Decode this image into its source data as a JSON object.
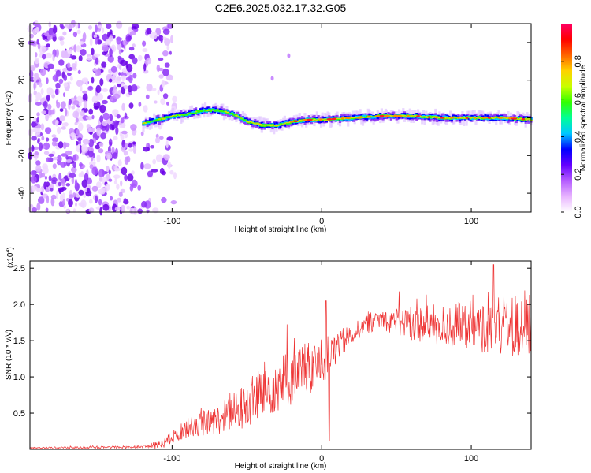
{
  "title": "C2E6.2025.032.17.32.G05",
  "chart_data": [
    {
      "type": "heatmap",
      "title": "C2E6.2025.032.17.32.G05",
      "xlabel": "Height of straight line (km)",
      "ylabel": "Frequency (Hz)",
      "xlim": [
        -195,
        140
      ],
      "ylim": [
        -50,
        50
      ],
      "x_ticks": [
        -100,
        0,
        100
      ],
      "y_ticks": [
        -40,
        -20,
        0,
        20,
        40
      ],
      "noise_region_x": [
        -195,
        -110
      ],
      "ridge_center_points": [
        {
          "x": -120,
          "y": -3
        },
        {
          "x": -110,
          "y": -1
        },
        {
          "x": -100,
          "y": 1
        },
        {
          "x": -90,
          "y": 2
        },
        {
          "x": -80,
          "y": 4
        },
        {
          "x": -70,
          "y": 4
        },
        {
          "x": -60,
          "y": 2
        },
        {
          "x": -50,
          "y": -2
        },
        {
          "x": -40,
          "y": -4
        },
        {
          "x": -30,
          "y": -4
        },
        {
          "x": -20,
          "y": -2
        },
        {
          "x": -10,
          "y": -1
        },
        {
          "x": 0,
          "y": -1
        },
        {
          "x": 20,
          "y": 0
        },
        {
          "x": 40,
          "y": 1
        },
        {
          "x": 60,
          "y": 1
        },
        {
          "x": 80,
          "y": 0
        },
        {
          "x": 100,
          "y": 0
        },
        {
          "x": 120,
          "y": 0
        },
        {
          "x": 140,
          "y": -1
        }
      ],
      "isolated_blips": [
        {
          "x": -33,
          "y": 21
        },
        {
          "x": -22,
          "y": 33
        }
      ],
      "colorbar": {
        "label": "Normalized spectral amplitude",
        "range": [
          0.0,
          1.0
        ],
        "ticks": [
          "0.0",
          "0.2",
          "0.4",
          "0.6",
          "0.8"
        ],
        "tick_values": [
          0.0,
          0.2,
          0.4,
          0.6,
          0.8
        ],
        "colors": [
          "#ffffff",
          "#e8b4ff",
          "#b45cff",
          "#6400ff",
          "#0000ff",
          "#00c8ff",
          "#00ff96",
          "#32ff00",
          "#c8ff00",
          "#ffd200",
          "#ff6400",
          "#ff0000",
          "#ff0064"
        ]
      }
    },
    {
      "type": "line",
      "xlabel": "Height of straight line (km)",
      "ylabel": "SNR (10 * v/v)",
      "y_multiplier": "(x10",
      "y_multiplier_exp": "4",
      "y_multiplier_close": ")",
      "xlim": [
        -195,
        140
      ],
      "ylim": [
        0,
        2.6
      ],
      "x_ticks": [
        -100,
        0,
        100
      ],
      "y_ticks": [
        0.5,
        1.0,
        1.5,
        2.0,
        2.5
      ],
      "y_tick_labels": [
        "0.5",
        "1.0",
        "1.5",
        "2.0",
        "2.5"
      ],
      "color": "#ee3333",
      "series_envelope": [
        {
          "x": -195,
          "y": 0.02
        },
        {
          "x": -130,
          "y": 0.03
        },
        {
          "x": -110,
          "y": 0.05
        },
        {
          "x": -100,
          "y": 0.15
        },
        {
          "x": -90,
          "y": 0.3
        },
        {
          "x": -80,
          "y": 0.35
        },
        {
          "x": -70,
          "y": 0.4
        },
        {
          "x": -60,
          "y": 0.5
        },
        {
          "x": -50,
          "y": 0.6
        },
        {
          "x": -40,
          "y": 0.8
        },
        {
          "x": -30,
          "y": 0.9
        },
        {
          "x": -20,
          "y": 1.0
        },
        {
          "x": -10,
          "y": 1.1
        },
        {
          "x": 0,
          "y": 1.2
        },
        {
          "x": 10,
          "y": 1.4
        },
        {
          "x": 20,
          "y": 1.6
        },
        {
          "x": 30,
          "y": 1.75
        },
        {
          "x": 40,
          "y": 1.8
        },
        {
          "x": 60,
          "y": 1.75
        },
        {
          "x": 80,
          "y": 1.7
        },
        {
          "x": 100,
          "y": 1.7
        },
        {
          "x": 120,
          "y": 1.7
        },
        {
          "x": 140,
          "y": 1.7
        }
      ],
      "noise_amplitude": [
        {
          "x": -195,
          "y": 0.01
        },
        {
          "x": -120,
          "y": 0.02
        },
        {
          "x": -100,
          "y": 0.1
        },
        {
          "x": -70,
          "y": 0.2
        },
        {
          "x": -40,
          "y": 0.4
        },
        {
          "x": -10,
          "y": 0.4
        },
        {
          "x": 20,
          "y": 0.15
        },
        {
          "x": 40,
          "y": 0.15
        },
        {
          "x": 60,
          "y": 0.25
        },
        {
          "x": 140,
          "y": 0.45
        }
      ],
      "notable_points": [
        {
          "x": 3,
          "y": 2.05
        },
        {
          "x": 5,
          "y": 0.12
        },
        {
          "x": 115,
          "y": 2.55
        }
      ]
    }
  ]
}
